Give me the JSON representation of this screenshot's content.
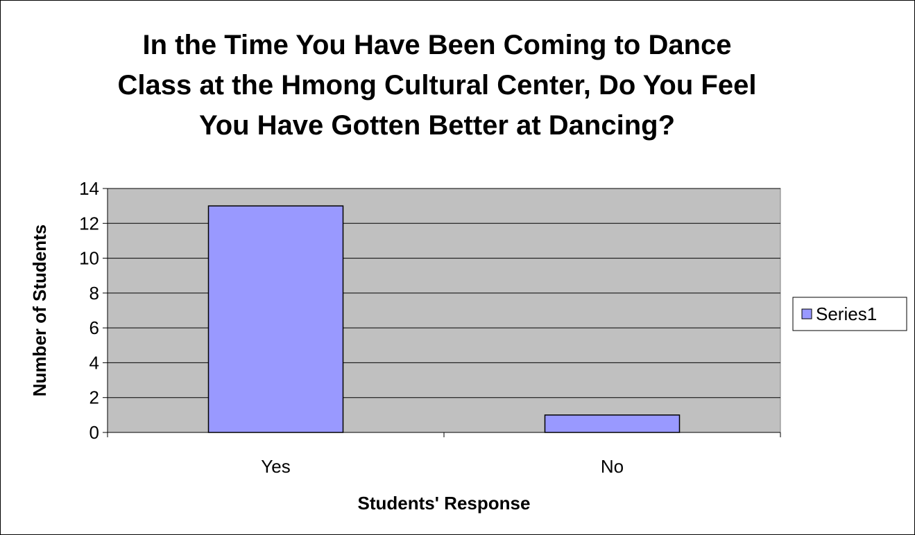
{
  "chart_data": {
    "type": "bar",
    "title_lines": [
      "In the Time You Have Been Coming to Dance",
      "Class at the Hmong Cultural Center, Do You Feel",
      "You Have Gotten Better at Dancing?"
    ],
    "categories": [
      "Yes",
      "No"
    ],
    "series": [
      {
        "name": "Series1",
        "values": [
          13,
          1
        ]
      }
    ],
    "xlabel": "Students' Response",
    "ylabel": "Number of Students",
    "ylim": [
      0,
      14
    ],
    "yticks": [
      "0",
      "2",
      "4",
      "6",
      "8",
      "10",
      "12",
      "14"
    ],
    "grid": true,
    "legend": "right",
    "colors": {
      "plot_background": "#c0c0c0",
      "bar_fill": "#9999ff",
      "bar_stroke": "#000000",
      "gridline": "#000000"
    }
  }
}
